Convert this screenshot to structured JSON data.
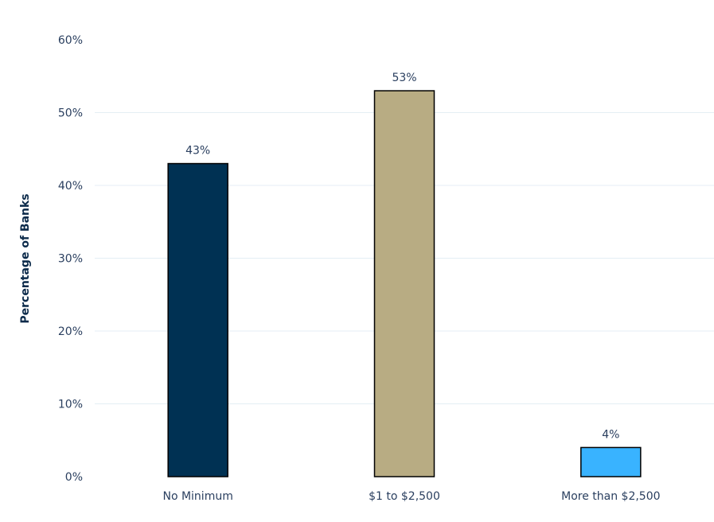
{
  "chart_data": {
    "type": "bar",
    "categories": [
      "No Minimum",
      "$1 to $2,500",
      "More than $2,500"
    ],
    "values": [
      43,
      53,
      4
    ],
    "value_labels": [
      "43%",
      "53%",
      "4%"
    ],
    "colors": [
      "#003153",
      "#b8ac83",
      "#39b3ff"
    ],
    "bar_outline_color": "#000000",
    "title": "",
    "xlabel": "",
    "ylabel": "Percentage of Banks",
    "ylim": [
      0,
      60
    ],
    "yticks": [
      0,
      10,
      20,
      30,
      40,
      50,
      60
    ],
    "ytick_labels": [
      "0%",
      "10%",
      "20%",
      "30%",
      "40%",
      "50%",
      "60%"
    ],
    "grid": true,
    "legend": "none"
  }
}
